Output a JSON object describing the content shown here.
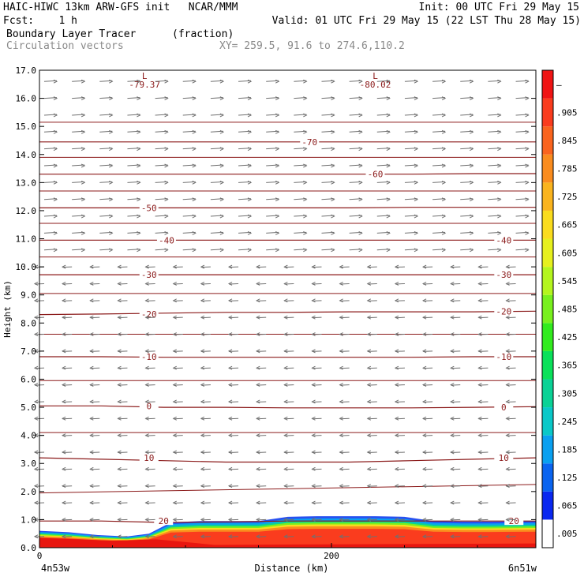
{
  "header": {
    "line1_left": "HAIC-HIWC 13km ARW-GFS init   NCAR/MMM",
    "line1_right": "Init: 00 UTC Fri 29 May 15",
    "line2_left": "Fcst:    1 h",
    "line2_right": "Valid: 01 UTC Fri 29 May 15 (22 LST Thu 28 May 15)",
    "line3_left": "Boundary Layer Tracer",
    "line3_mid": "(fraction)",
    "line4_left": "Circulation vectors",
    "line4_mid": "XY= 259.5, 91.6 to 274.6,110.2"
  },
  "colors": {
    "contour": "#8b1a1a",
    "vector": "#707070",
    "frame": "#000000"
  },
  "chart_data": {
    "type": "heatmap",
    "title": "Boundary Layer Tracer (fraction)",
    "xlabel": "Distance (km)",
    "ylabel": "Height (km)",
    "xlim": [
      0,
      340
    ],
    "ylim": [
      0,
      17
    ],
    "x_tick_labels": [
      {
        "x": 0,
        "label": "0"
      },
      {
        "x": 200,
        "label": "200"
      }
    ],
    "y_ticks": [
      0.0,
      1.0,
      2.0,
      3.0,
      4.0,
      5.0,
      6.0,
      7.0,
      8.0,
      9.0,
      10.0,
      11.0,
      12.0,
      13.0,
      14.0,
      15.0,
      16.0,
      17.0
    ],
    "y_tick_labels": [
      "0.0",
      "1.0",
      "2.0",
      "3.0",
      "4.0",
      "5.0",
      "6.0",
      "7.0",
      "8.0",
      "9.0",
      "10.0",
      "11.0",
      "12.0",
      "13.0",
      "14.0",
      "15.0",
      "16.0",
      "17.0"
    ],
    "endpoint_labels": {
      "left": "4n53w",
      "right": "6n51w"
    },
    "colorbar": {
      "labels": [
        ".005",
        ".065",
        ".125",
        ".185",
        ".245",
        ".305",
        ".365",
        ".425",
        ".485",
        ".545",
        ".605",
        ".665",
        ".725",
        ".785",
        ".845",
        ".905",
        "–"
      ],
      "colors": [
        "#ffffff",
        "#0a28f0",
        "#0a64f0",
        "#0aa0f0",
        "#0ac8c8",
        "#0ad296",
        "#0ae15a",
        "#32eb1e",
        "#78f01e",
        "#b4f51e",
        "#e6f01e",
        "#fadc1e",
        "#fab41e",
        "#fa8c1e",
        "#fa641e",
        "#fa3c1e",
        "#f01414"
      ]
    },
    "temperature_contours": [
      {
        "label": "20",
        "y": [
          0.95,
          0.95,
          0.9,
          0.92,
          0.95,
          0.95,
          0.95,
          0.95,
          0.95
        ]
      },
      {
        "label": "10",
        "y": [
          3.2,
          3.15,
          3.1,
          3.05,
          3.05,
          3.05,
          3.1,
          3.15,
          3.2
        ]
      },
      {
        "label": "0",
        "y": [
          5.05,
          5.05,
          5.0,
          5.0,
          4.98,
          4.98,
          4.98,
          5.0,
          5.02
        ]
      },
      {
        "label": "-10",
        "y": [
          6.8,
          6.8,
          6.78,
          6.78,
          6.78,
          6.78,
          6.78,
          6.8,
          6.8
        ]
      },
      {
        "label": "-20",
        "y": [
          8.3,
          8.32,
          8.35,
          8.38,
          8.38,
          8.4,
          8.4,
          8.4,
          8.42
        ]
      },
      {
        "label": "-30",
        "y": [
          9.72,
          9.72,
          9.72,
          9.72,
          9.72,
          9.72,
          9.72,
          9.72,
          9.72
        ]
      },
      {
        "label": "-40",
        "y": [
          10.95,
          10.95,
          10.95,
          10.95,
          10.95,
          10.95,
          10.95,
          10.95,
          10.95
        ]
      },
      {
        "label": "-50",
        "y": [
          12.1,
          12.1,
          12.1,
          12.1,
          12.1,
          12.1,
          12.12,
          12.12,
          12.12
        ]
      },
      {
        "label": "-60",
        "y": [
          13.3,
          13.3,
          13.3,
          13.3,
          13.3,
          13.3,
          13.3,
          13.32,
          13.32
        ]
      },
      {
        "label": "-70",
        "y": [
          14.45,
          14.45,
          14.45,
          14.45,
          14.45,
          14.45,
          14.45,
          14.45,
          14.45
        ]
      }
    ],
    "min_labels": [
      {
        "x": 72,
        "y": 16.8,
        "label": "L"
      },
      {
        "x": 72,
        "y": 16.5,
        "label": "-79.37"
      },
      {
        "x": 230,
        "y": 16.8,
        "label": "L"
      },
      {
        "x": 230,
        "y": 16.5,
        "label": "-80.02"
      }
    ],
    "tracer_top_km": {
      "x": [
        0,
        20,
        40,
        60,
        75,
        90,
        110,
        130,
        150,
        170,
        190,
        210,
        230,
        250,
        270,
        290,
        310,
        340
      ],
      "y": [
        0.6,
        0.55,
        0.45,
        0.4,
        0.5,
        0.9,
        0.95,
        0.95,
        0.95,
        1.1,
        1.12,
        1.12,
        1.12,
        1.1,
        0.95,
        0.93,
        0.93,
        0.95
      ]
    },
    "vector_field": "circulation vectors, westerly aloft, easterly below ~10 km"
  },
  "contour_labels_shown": [
    {
      "text": "20",
      "x": 85,
      "y": 0.95
    },
    {
      "text": "10",
      "x": 75,
      "y": 3.2
    },
    {
      "text": "10",
      "x": 318,
      "y": 3.2
    },
    {
      "text": "0",
      "x": 75,
      "y": 5.05
    },
    {
      "text": "0",
      "x": 318,
      "y": 5.0
    },
    {
      "text": "-10",
      "x": 75,
      "y": 6.8
    },
    {
      "text": "-10",
      "x": 318,
      "y": 6.8
    },
    {
      "text": "-20",
      "x": 75,
      "y": 8.32
    },
    {
      "text": "-20",
      "x": 318,
      "y": 8.42
    },
    {
      "text": "-30",
      "x": 75,
      "y": 9.72
    },
    {
      "text": "-30",
      "x": 318,
      "y": 9.72
    },
    {
      "text": "-40",
      "x": 87,
      "y": 10.95
    },
    {
      "text": "-40",
      "x": 318,
      "y": 10.95
    },
    {
      "text": "-50",
      "x": 75,
      "y": 12.1
    },
    {
      "text": "-60",
      "x": 230,
      "y": 13.3
    },
    {
      "text": "-70",
      "x": 185,
      "y": 14.45
    },
    {
      "text": "20",
      "x": 325,
      "y": 0.95
    }
  ]
}
